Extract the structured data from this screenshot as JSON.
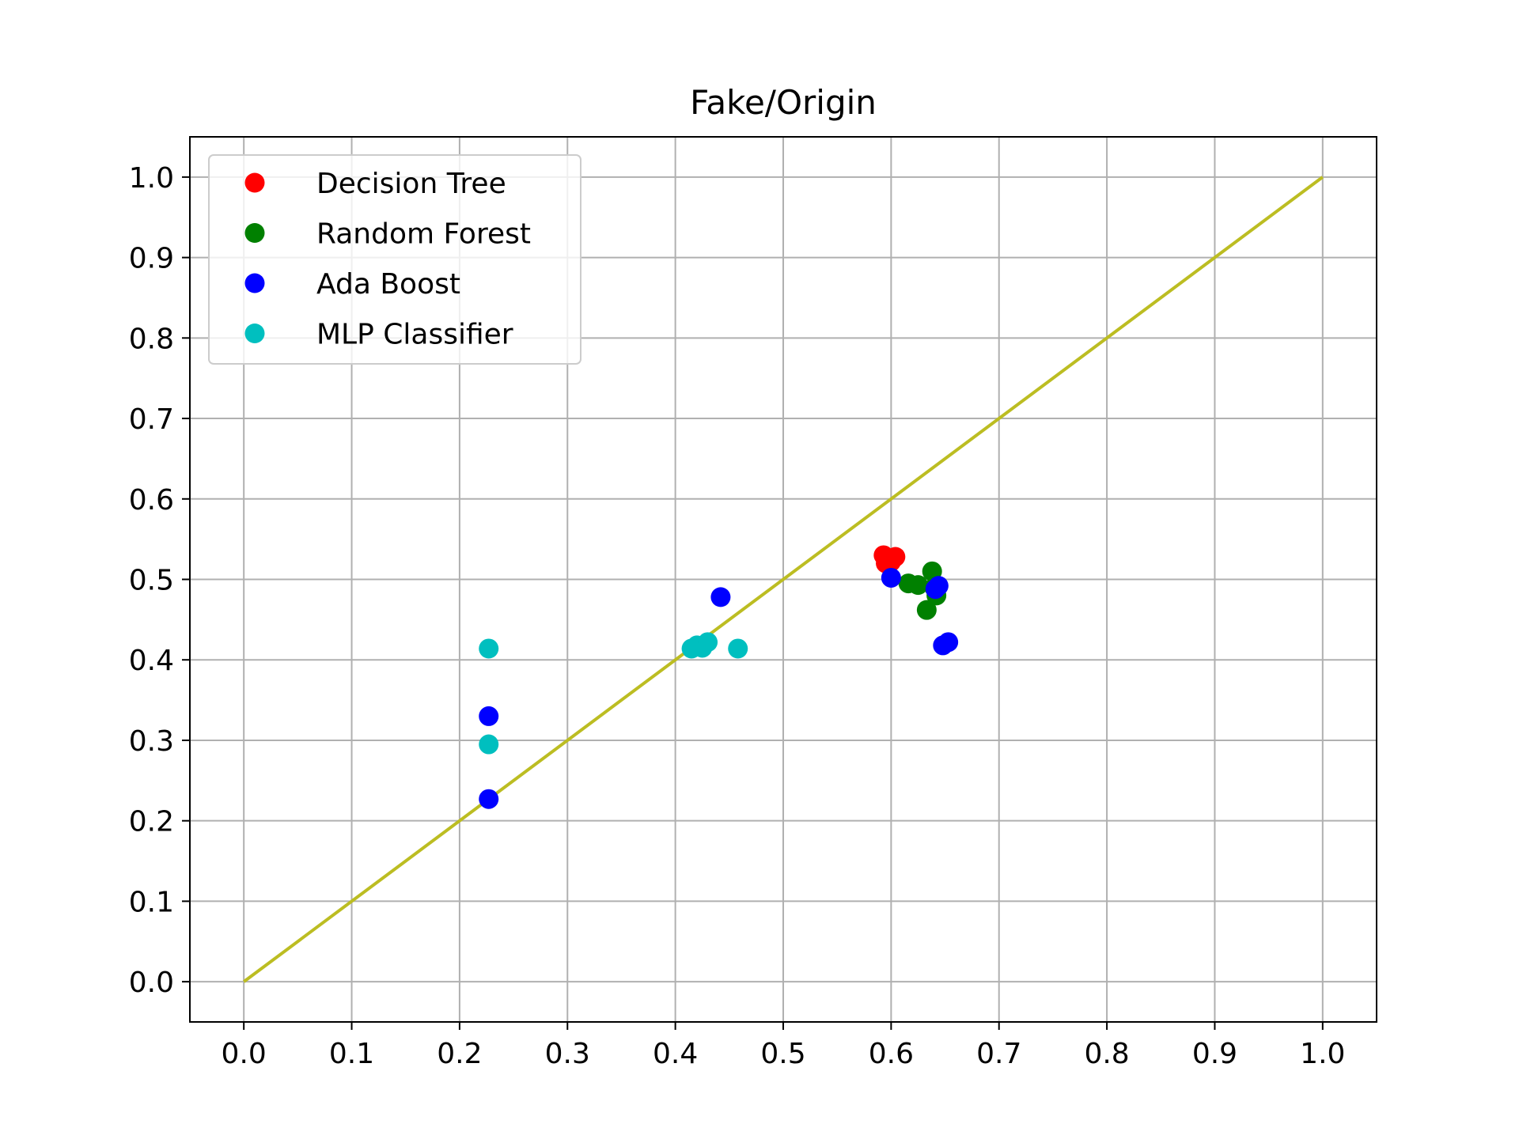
{
  "chart_data": {
    "type": "scatter",
    "title": "Fake/Origin",
    "xlabel": "",
    "ylabel": "",
    "xlim": [
      -0.05,
      1.05
    ],
    "ylim": [
      -0.05,
      1.05
    ],
    "xticks": [
      "0.0",
      "0.1",
      "0.2",
      "0.3",
      "0.4",
      "0.5",
      "0.6",
      "0.7",
      "0.8",
      "0.9",
      "1.0"
    ],
    "yticks": [
      "0.0",
      "0.1",
      "0.2",
      "0.3",
      "0.4",
      "0.5",
      "0.6",
      "0.7",
      "0.8",
      "0.9",
      "1.0"
    ],
    "grid": true,
    "legend_position": "upper-left",
    "series": [
      {
        "name": "Decision Tree",
        "color": "#ff0000",
        "points": [
          [
            0.593,
            0.53
          ],
          [
            0.604,
            0.528
          ],
          [
            0.595,
            0.52
          ],
          [
            0.6,
            0.522
          ]
        ]
      },
      {
        "name": "Random Forest",
        "color": "#008000",
        "points": [
          [
            0.616,
            0.495
          ],
          [
            0.625,
            0.493
          ],
          [
            0.638,
            0.51
          ],
          [
            0.642,
            0.48
          ],
          [
            0.633,
            0.462
          ],
          [
            0.64,
            0.49
          ]
        ]
      },
      {
        "name": "Ada Boost",
        "color": "#0000ff",
        "points": [
          [
            0.227,
            0.227
          ],
          [
            0.227,
            0.33
          ],
          [
            0.442,
            0.478
          ],
          [
            0.6,
            0.502
          ],
          [
            0.641,
            0.488
          ],
          [
            0.644,
            0.492
          ],
          [
            0.648,
            0.418
          ],
          [
            0.653,
            0.422
          ]
        ]
      },
      {
        "name": "MLP Classifier",
        "color": "#00bfbf",
        "points": [
          [
            0.227,
            0.414
          ],
          [
            0.227,
            0.295
          ],
          [
            0.415,
            0.414
          ],
          [
            0.42,
            0.418
          ],
          [
            0.425,
            0.415
          ],
          [
            0.43,
            0.422
          ],
          [
            0.458,
            0.414
          ]
        ]
      }
    ],
    "reference_line": {
      "color": "#bcbd22",
      "from": [
        0.0,
        0.0
      ],
      "to": [
        1.0,
        1.0
      ]
    }
  }
}
